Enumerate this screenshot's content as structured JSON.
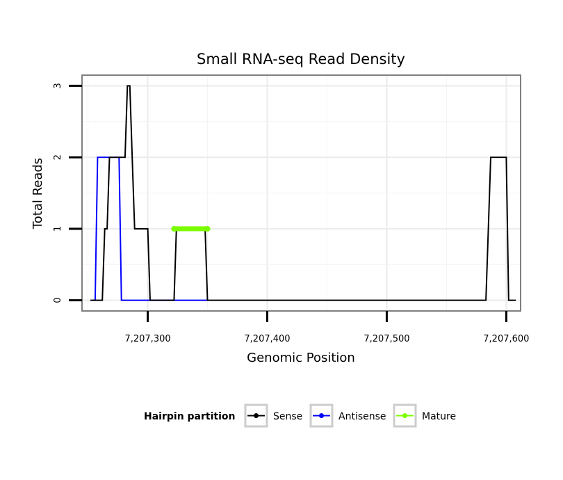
{
  "chart_data": {
    "type": "line",
    "title": "Small RNA-seq Read Density",
    "xlabel": "Genomic Position",
    "ylabel": "Total Reads",
    "xlim": [
      7207245,
      7207612
    ],
    "ylim": [
      -0.15,
      3.15
    ],
    "x_ticks": [
      {
        "value": 7207300,
        "label": "7,207,300"
      },
      {
        "value": 7207400,
        "label": "7,207,400"
      },
      {
        "value": 7207500,
        "label": "7,207,500"
      },
      {
        "value": 7207600,
        "label": "7,207,600"
      }
    ],
    "y_ticks": [
      {
        "value": 0,
        "label": "0"
      },
      {
        "value": 1,
        "label": "1"
      },
      {
        "value": 2,
        "label": "2"
      },
      {
        "value": 3,
        "label": "3"
      }
    ],
    "grid": true,
    "legend": {
      "title": "Hairpin partition",
      "position": "bottom"
    },
    "series": [
      {
        "name": "Sense",
        "color": "#000000",
        "points": [
          [
            7207252,
            0
          ],
          [
            7207262,
            0
          ],
          [
            7207264,
            1
          ],
          [
            7207266,
            1
          ],
          [
            7207268,
            2
          ],
          [
            7207281,
            2
          ],
          [
            7207283,
            3
          ],
          [
            7207285,
            3
          ],
          [
            7207287,
            2
          ],
          [
            7207289,
            1
          ],
          [
            7207300,
            1
          ],
          [
            7207302,
            0
          ],
          [
            7207322,
            0
          ],
          [
            7207324,
            1
          ],
          [
            7207348,
            1
          ],
          [
            7207350,
            0
          ],
          [
            7207583,
            0
          ],
          [
            7207585,
            1
          ],
          [
            7207587,
            2
          ],
          [
            7207600,
            2
          ],
          [
            7207602,
            0
          ],
          [
            7207608,
            0
          ]
        ]
      },
      {
        "name": "Antisense",
        "color": "#0000ff",
        "points": [
          [
            7207254,
            0
          ],
          [
            7207256,
            0
          ],
          [
            7207258,
            2
          ],
          [
            7207276,
            2
          ],
          [
            7207278,
            0
          ],
          [
            7207350,
            0
          ]
        ]
      },
      {
        "name": "Mature",
        "color": "#7cfc00",
        "points": [
          [
            7207322,
            1
          ],
          [
            7207350,
            1
          ]
        ]
      }
    ]
  }
}
